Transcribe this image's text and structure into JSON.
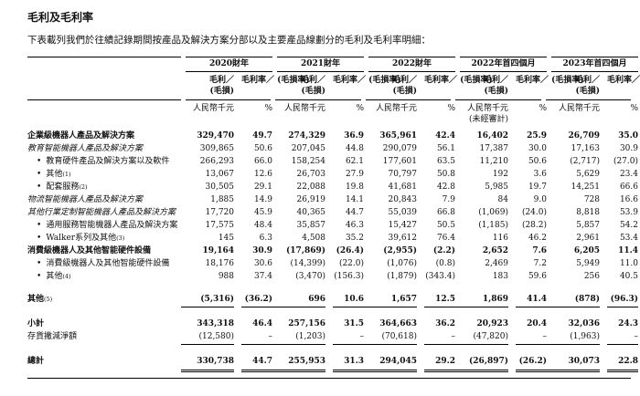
{
  "page": {
    "title": "毛利及毛利率",
    "subtitle": "下表載列我們於往績記錄期間按產品及解決方案分部以及主要產品線劃分的毛利及毛利率明細："
  },
  "table": {
    "col_groups": [
      {
        "label": "2020財年",
        "unit_note": ""
      },
      {
        "label": "2021財年",
        "unit_note": ""
      },
      {
        "label": "2022財年",
        "unit_note": ""
      },
      {
        "label": "2022年首四個月",
        "unit_note": "(未經審計)"
      },
      {
        "label": "2023年首四個月",
        "unit_note": ""
      }
    ],
    "sub_headers": {
      "value": "毛利／\n(毛損)",
      "pct": "毛利率／\n(毛損率)"
    },
    "units": {
      "value": "人民幣千元",
      "pct": "%"
    },
    "rows": [
      {
        "label": "企業級機器人產品及解決方案",
        "sup": "",
        "style": "bold",
        "gap_before": false,
        "underline": "",
        "values": [
          "329,470",
          "49.7",
          "274,329",
          "36.9",
          "365,961",
          "42.4",
          "16,402",
          "25.9",
          "26,709",
          "35.0"
        ]
      },
      {
        "label": "教育智能機器人產品及解決方案",
        "sup": "",
        "style": "italic",
        "gap_before": false,
        "underline": "",
        "values": [
          "309,865",
          "50.6",
          "207,045",
          "44.8",
          "290,079",
          "56.1",
          "17,387",
          "30.0",
          "17,163",
          "30.9"
        ]
      },
      {
        "label": "教育硬件產品及解決方案以及軟件",
        "sup": "",
        "style": "bullet",
        "gap_before": false,
        "underline": "",
        "values": [
          "266,293",
          "66.0",
          "158,254",
          "62.1",
          "177,601",
          "63.5",
          "11,210",
          "50.6",
          "(2,717)",
          "(27.0)"
        ]
      },
      {
        "label": "其他",
        "sup": "(1)",
        "style": "bullet",
        "gap_before": false,
        "underline": "",
        "values": [
          "13,067",
          "12.6",
          "26,703",
          "27.9",
          "70,797",
          "50.8",
          "192",
          "3.6",
          "5,629",
          "23.4"
        ]
      },
      {
        "label": "配套服務",
        "sup": "(2)",
        "style": "bullet",
        "gap_before": false,
        "underline": "",
        "values": [
          "30,505",
          "29.1",
          "22,088",
          "19.8",
          "41,681",
          "42.8",
          "5,985",
          "19.7",
          "14,251",
          "66.6"
        ]
      },
      {
        "label": "物流智能機器人產品及解決方案",
        "sup": "",
        "style": "italic",
        "gap_before": false,
        "underline": "",
        "values": [
          "1,885",
          "14.9",
          "26,919",
          "14.1",
          "20,843",
          "7.9",
          "84",
          "9.0",
          "728",
          "16.6"
        ]
      },
      {
        "label": "其他行業定制智能機器人產品及解決方案",
        "sup": "",
        "style": "italic",
        "gap_before": false,
        "underline": "",
        "values": [
          "17,720",
          "45.9",
          "40,365",
          "44.7",
          "55,039",
          "66.8",
          "(1,069)",
          "(24.0)",
          "8,818",
          "53.9"
        ]
      },
      {
        "label": "通用服務智能機器人產品及解決方案",
        "sup": "",
        "style": "bullet",
        "gap_before": false,
        "underline": "",
        "values": [
          "17,575",
          "48.4",
          "35,857",
          "46.3",
          "15,427",
          "50.5",
          "(1,185)",
          "(28.2)",
          "5,857",
          "54.2"
        ]
      },
      {
        "label": "Walker系列及其他",
        "sup": "(3)",
        "style": "bullet",
        "gap_before": false,
        "underline": "",
        "values": [
          "145",
          "6.3",
          "4,508",
          "35.2",
          "39,612",
          "76.4",
          "116",
          "46.2",
          "2,961",
          "53.4"
        ]
      },
      {
        "label": "消費級機器人及其他智能硬件設備",
        "sup": "",
        "style": "bold",
        "gap_before": false,
        "underline": "",
        "values": [
          "19,164",
          "30.9",
          "(17,869)",
          "(26.4)",
          "(2,955)",
          "(2.2)",
          "2,652",
          "7.6",
          "6,205",
          "11.4"
        ]
      },
      {
        "label": "消費級機器人及其他智能硬件設備",
        "sup": "",
        "style": "bullet",
        "gap_before": false,
        "underline": "",
        "values": [
          "18,176",
          "30.6",
          "(14,399)",
          "(22.0)",
          "(1,076)",
          "(0.8)",
          "2,469",
          "7.2",
          "5,949",
          "11.0"
        ]
      },
      {
        "label": "其他",
        "sup": "(4)",
        "style": "bullet",
        "gap_before": false,
        "underline": "",
        "values": [
          "988",
          "37.4",
          "(3,470)",
          "(156.3)",
          "(1,879)",
          "(343.4)",
          "183",
          "59.6",
          "256",
          "40.5"
        ]
      },
      {
        "label": "其他",
        "sup": "(5)",
        "style": "bold",
        "gap_before": true,
        "underline": "single",
        "values": [
          "(5,316)",
          "(36.2)",
          "696",
          "10.6",
          "1,657",
          "12.5",
          "1,869",
          "41.4",
          "(878)",
          "(96.3)"
        ]
      },
      {
        "label": "小計",
        "sup": "",
        "style": "bold",
        "gap_before": true,
        "underline": "",
        "values": [
          "343,318",
          "46.4",
          "257,156",
          "31.5",
          "364,663",
          "36.2",
          "20,923",
          "20.4",
          "32,036",
          "24.3"
        ]
      },
      {
        "label": "存貨撇減淨額",
        "sup": "",
        "style": "plain",
        "gap_before": false,
        "underline": "single",
        "values": [
          "(12,580)",
          "–",
          "(1,203)",
          "–",
          "(70,618)",
          "–",
          "(47,820)",
          "–",
          "(1,963)",
          "–"
        ]
      },
      {
        "label": "總計",
        "sup": "",
        "style": "bold",
        "gap_before": true,
        "underline": "double",
        "values": [
          "330,738",
          "44.7",
          "255,953",
          "31.3",
          "294,045",
          "29.2",
          "(26,897)",
          "(26.2)",
          "30,073",
          "22.8"
        ]
      }
    ]
  }
}
